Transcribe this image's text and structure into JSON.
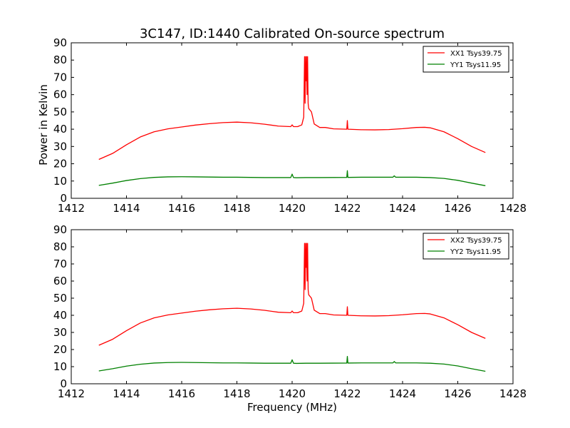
{
  "figure": {
    "title": "3C147, ID:1440 Calibrated On-source spectrum",
    "xlabel": "Frequency (MHz)"
  },
  "chart_data": [
    {
      "type": "line",
      "title": "3C147, ID:1440 Calibrated On-source spectrum",
      "xlabel": "",
      "ylabel": "Power in Kelvin",
      "xlim": [
        1412,
        1428
      ],
      "ylim": [
        0,
        90
      ],
      "xticks": [
        1412,
        1414,
        1416,
        1418,
        1420,
        1422,
        1424,
        1426,
        1428
      ],
      "yticks": [
        0,
        10,
        20,
        30,
        40,
        50,
        60,
        70,
        80,
        90
      ],
      "legend_position": "top-right",
      "series": [
        {
          "name": "XX1 Tsys39.75",
          "color": "#ff0000",
          "x": [
            1413.0,
            1413.5,
            1414.0,
            1414.5,
            1415.0,
            1415.5,
            1416.0,
            1416.5,
            1417.0,
            1417.5,
            1418.0,
            1418.5,
            1419.0,
            1419.5,
            1419.95,
            1420.0,
            1420.05,
            1420.2,
            1420.35,
            1420.42,
            1420.45,
            1420.47,
            1420.49,
            1420.5,
            1420.52,
            1420.54,
            1420.56,
            1420.58,
            1420.6,
            1420.7,
            1420.8,
            1421.0,
            1421.2,
            1421.5,
            1421.98,
            1422.0,
            1422.02,
            1422.5,
            1423.0,
            1423.5,
            1424.0,
            1424.5,
            1424.8,
            1425.0,
            1425.5,
            1426.0,
            1426.5,
            1427.0
          ],
          "y": [
            22.5,
            26,
            31,
            35.5,
            38.5,
            40.2,
            41.3,
            42.4,
            43.2,
            43.8,
            44.1,
            43.7,
            42.9,
            41.8,
            41.5,
            42.5,
            41.5,
            41.5,
            42.5,
            47,
            82,
            55,
            82,
            68,
            82,
            60,
            82,
            55,
            52,
            50,
            43,
            41,
            41,
            40.2,
            40,
            45,
            40,
            39.7,
            39.6,
            39.8,
            40.3,
            41.0,
            41.1,
            40.8,
            38.5,
            34.5,
            30,
            26.5
          ]
        },
        {
          "name": "YY1 Tsys11.95",
          "color": "#008000",
          "x": [
            1413.0,
            1413.5,
            1414.0,
            1414.5,
            1415.0,
            1415.5,
            1416.0,
            1416.5,
            1417.0,
            1417.5,
            1418.0,
            1418.5,
            1419.0,
            1419.5,
            1419.95,
            1420.0,
            1420.05,
            1420.15,
            1420.5,
            1421.0,
            1421.98,
            1422.0,
            1422.02,
            1422.5,
            1423.0,
            1423.65,
            1423.7,
            1423.75,
            1424.0,
            1424.5,
            1425.0,
            1425.5,
            1426.0,
            1426.5,
            1427.0
          ],
          "y": [
            7.5,
            8.8,
            10.3,
            11.4,
            12.1,
            12.4,
            12.5,
            12.4,
            12.3,
            12.2,
            12.2,
            12.1,
            12.0,
            12.0,
            12.0,
            14,
            12.0,
            11.9,
            12.0,
            12.0,
            12.1,
            16,
            12.1,
            12.2,
            12.2,
            12.2,
            13,
            12.2,
            12.2,
            12.2,
            12.0,
            11.5,
            10.4,
            8.8,
            7.3
          ]
        }
      ]
    },
    {
      "type": "line",
      "title": "",
      "xlabel": "Frequency (MHz)",
      "ylabel": "",
      "xlim": [
        1412,
        1428
      ],
      "ylim": [
        0,
        90
      ],
      "xticks": [
        1412,
        1414,
        1416,
        1418,
        1420,
        1422,
        1424,
        1426,
        1428
      ],
      "yticks": [
        0,
        10,
        20,
        30,
        40,
        50,
        60,
        70,
        80,
        90
      ],
      "legend_position": "top-right",
      "series": [
        {
          "name": "XX2 Tsys39.75",
          "color": "#ff0000",
          "x": [
            1413.0,
            1413.5,
            1414.0,
            1414.5,
            1415.0,
            1415.5,
            1416.0,
            1416.5,
            1417.0,
            1417.5,
            1418.0,
            1418.5,
            1419.0,
            1419.5,
            1419.95,
            1420.0,
            1420.05,
            1420.2,
            1420.35,
            1420.42,
            1420.45,
            1420.47,
            1420.49,
            1420.5,
            1420.52,
            1420.54,
            1420.56,
            1420.58,
            1420.6,
            1420.7,
            1420.8,
            1421.0,
            1421.2,
            1421.5,
            1421.98,
            1422.0,
            1422.02,
            1422.5,
            1423.0,
            1423.5,
            1424.0,
            1424.5,
            1424.8,
            1425.0,
            1425.5,
            1426.0,
            1426.5,
            1427.0
          ],
          "y": [
            22.5,
            26,
            31,
            35.5,
            38.5,
            40.2,
            41.3,
            42.4,
            43.2,
            43.8,
            44.1,
            43.7,
            42.9,
            41.8,
            41.5,
            42.5,
            41.5,
            41.5,
            42.5,
            47,
            82,
            55,
            82,
            68,
            82,
            60,
            82,
            55,
            52,
            50,
            43,
            41,
            41,
            40.2,
            40,
            45,
            40,
            39.7,
            39.6,
            39.8,
            40.3,
            41.0,
            41.1,
            40.8,
            38.5,
            34.5,
            30,
            26.5
          ]
        },
        {
          "name": "YY2 Tsys11.95",
          "color": "#008000",
          "x": [
            1413.0,
            1413.5,
            1414.0,
            1414.5,
            1415.0,
            1415.5,
            1416.0,
            1416.5,
            1417.0,
            1417.5,
            1418.0,
            1418.5,
            1419.0,
            1419.5,
            1419.95,
            1420.0,
            1420.05,
            1420.15,
            1420.5,
            1421.0,
            1421.98,
            1422.0,
            1422.02,
            1422.5,
            1423.0,
            1423.65,
            1423.7,
            1423.75,
            1424.0,
            1424.5,
            1425.0,
            1425.5,
            1426.0,
            1426.5,
            1427.0
          ],
          "y": [
            7.5,
            8.8,
            10.3,
            11.4,
            12.1,
            12.4,
            12.5,
            12.4,
            12.3,
            12.2,
            12.2,
            12.1,
            12.0,
            12.0,
            12.0,
            14,
            12.0,
            11.9,
            12.0,
            12.0,
            12.1,
            16,
            12.1,
            12.2,
            12.2,
            12.2,
            13,
            12.2,
            12.2,
            12.2,
            12.0,
            11.5,
            10.4,
            8.8,
            7.3
          ]
        }
      ]
    }
  ]
}
